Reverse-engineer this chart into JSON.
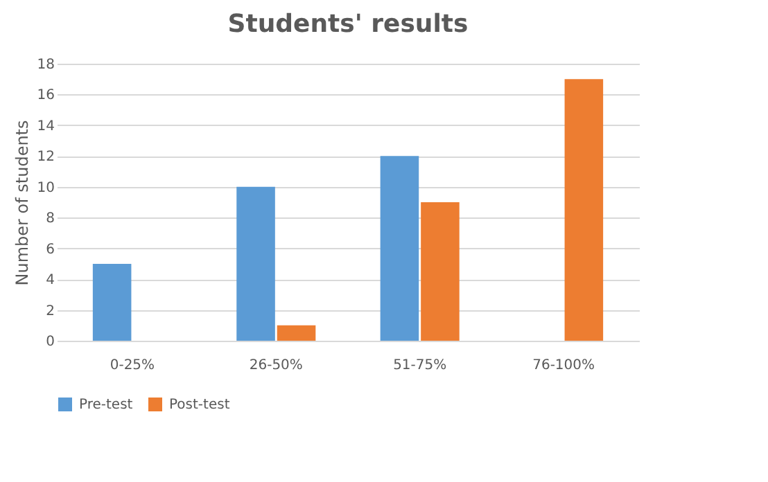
{
  "chart_data": {
    "type": "bar",
    "title": "Students' results",
    "ylabel": "Number of students",
    "categories": [
      "0-25%",
      "26-50%",
      "51-75%",
      "76-100%"
    ],
    "series": [
      {
        "name": "Pre-test",
        "color": "#5b9bd5",
        "values": [
          5,
          10,
          12,
          0
        ]
      },
      {
        "name": "Post-test",
        "color": "#ed7d31",
        "values": [
          0,
          1,
          9,
          17
        ]
      }
    ],
    "ylim": [
      0,
      18
    ],
    "yticks": [
      0,
      2,
      4,
      6,
      8,
      10,
      12,
      14,
      16,
      18
    ],
    "grid": "y",
    "legend": "bottom"
  }
}
